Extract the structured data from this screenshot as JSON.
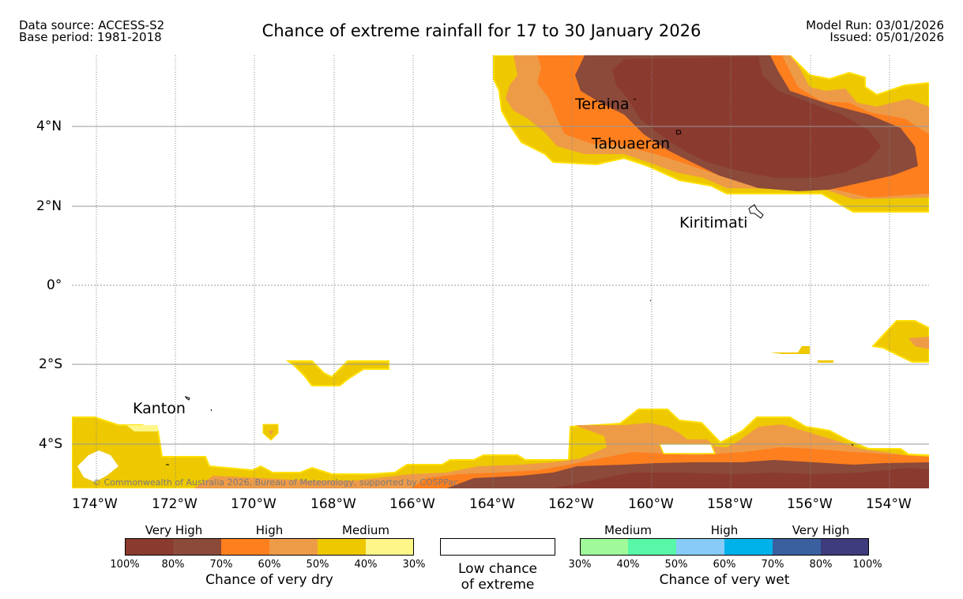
{
  "header": {
    "data_source": "Data source: ACCESS-S2",
    "base_period": "Base period: 1981-2018",
    "title": "Chance of extreme rainfall for 17 to 30 January 2026",
    "model_run": "Model Run: 03/01/2026",
    "issued": "Issued: 05/01/2026"
  },
  "map": {
    "lat_labels": [
      "4°N",
      "2°N",
      "0°",
      "2°S",
      "4°S"
    ],
    "lon_labels": [
      "174°W",
      "172°W",
      "170°W",
      "168°W",
      "166°W",
      "164°W",
      "162°W",
      "160°W",
      "158°W",
      "156°W",
      "154°W"
    ],
    "places": [
      "Teraina",
      "Tabuaeran",
      "Kiritimati",
      "Kanton"
    ],
    "copyright": "© Commonwealth of Australia 2026, Bureau of Meteorology, supported by COSPPac"
  },
  "legend": {
    "dry": {
      "groups": [
        "Very High",
        "High",
        "Medium"
      ],
      "ticks": [
        "100%",
        "80%",
        "70%",
        "60%",
        "50%",
        "40%",
        "30%"
      ],
      "colors": [
        "#8b3a2f",
        "#8b4a3a",
        "#fe7f1e",
        "#ee9b48",
        "#eec800",
        "#fff68a"
      ],
      "title": "Chance of very dry"
    },
    "low": {
      "line1": "Low chance",
      "line2": "of extreme"
    },
    "wet": {
      "groups": [
        "Medium",
        "High",
        "Very High"
      ],
      "ticks": [
        "30%",
        "40%",
        "50%",
        "60%",
        "70%",
        "80%",
        "100%"
      ],
      "colors": [
        "#a0fa9a",
        "#58f7a8",
        "#87ccf8",
        "#00b2ea",
        "#3a60a0",
        "#3e3c7c"
      ],
      "title": "Chance of very wet"
    }
  }
}
